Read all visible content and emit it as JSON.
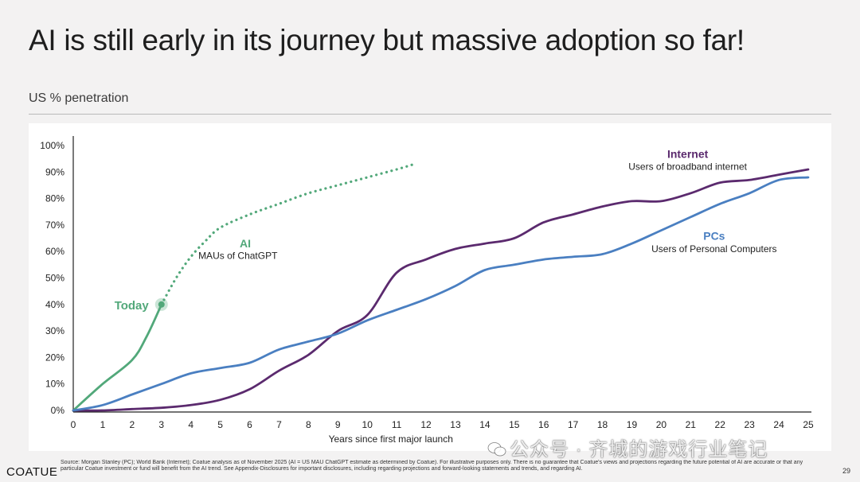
{
  "header": {
    "title": "AI is still early in its journey but massive adoption so far!",
    "subtitle": "US % penetration"
  },
  "chart_data": {
    "type": "line",
    "xlabel": "Years since first major launch",
    "ylabel": "",
    "xlim": [
      0,
      25
    ],
    "ylim": [
      0,
      100
    ],
    "x_ticks": [
      0,
      1,
      2,
      3,
      4,
      5,
      6,
      7,
      8,
      9,
      10,
      11,
      12,
      13,
      14,
      15,
      16,
      17,
      18,
      19,
      20,
      21,
      22,
      23,
      24,
      25
    ],
    "y_ticks": [
      0,
      10,
      20,
      30,
      40,
      50,
      60,
      70,
      80,
      90,
      100
    ],
    "y_tick_labels": [
      "0%",
      "10%",
      "20%",
      "30%",
      "40%",
      "50%",
      "60%",
      "70%",
      "80%",
      "90%",
      "100%"
    ],
    "colors": {
      "ai": "#52a87a",
      "internet": "#5b2a6e",
      "pcs": "#4a7fc1",
      "axis": "#222222"
    },
    "series": [
      {
        "name": "AI",
        "sublabel": "MAUs of ChatGPT",
        "style": "solid",
        "x": [
          0,
          1,
          2,
          2.5,
          3
        ],
        "y": [
          0,
          10,
          19,
          28,
          40
        ]
      },
      {
        "name": "AI projection",
        "style": "dotted",
        "x": [
          3,
          3.5,
          4,
          4.5,
          5,
          6,
          7,
          8,
          9,
          10,
          11,
          11.6
        ],
        "y": [
          40,
          50,
          58,
          64,
          69,
          74,
          78,
          82,
          85,
          88,
          91,
          93
        ]
      },
      {
        "name": "Internet",
        "sublabel": "Users of broadband internet",
        "style": "solid",
        "x": [
          0,
          1,
          2,
          3,
          4,
          5,
          6,
          7,
          8,
          9,
          10,
          11,
          12,
          13,
          14,
          15,
          16,
          17,
          18,
          19,
          20,
          21,
          22,
          23,
          24,
          25
        ],
        "y": [
          0,
          0,
          0.5,
          1,
          2,
          4,
          8,
          15,
          21,
          30,
          36,
          52,
          57,
          61,
          63,
          65,
          71,
          74,
          77,
          79,
          79,
          82,
          86,
          87,
          89,
          91
        ]
      },
      {
        "name": "PCs",
        "sublabel": "Users of Personal Computers",
        "style": "solid",
        "x": [
          0,
          1,
          2,
          3,
          4,
          5,
          6,
          7,
          8,
          9,
          10,
          11,
          12,
          13,
          14,
          15,
          16,
          17,
          18,
          19,
          20,
          21,
          22,
          23,
          24,
          25
        ],
        "y": [
          0,
          2,
          6,
          10,
          14,
          16,
          18,
          23,
          26,
          29,
          34,
          38,
          42,
          47,
          53,
          55,
          57,
          58,
          59,
          63,
          68,
          73,
          78,
          82,
          87,
          88
        ]
      }
    ],
    "annotations": [
      {
        "text": "Today",
        "x": 3,
        "y": 40,
        "series": "AI"
      }
    ]
  },
  "footer": {
    "logo": "COATUE",
    "source": "Source: Morgan Stanley (PC); World Bank (Internet); Coatue analysis as of November 2025 (AI = US MAU ChatGPT estimate as determined by Coatue). For illustrative purposes only. There is no guarantee that Coatue's views and projections regarding the future potential of AI are accurate or that any particular Coatue investment or fund will benefit from the AI trend. See Appendix-Disclosures for important disclosures, including regarding projections and forward-looking statements and trends, and regarding AI.",
    "page_number": "29"
  },
  "watermark": {
    "icon": "wechat-icon",
    "text": "公众号 · 齐城的游戏行业笔记"
  }
}
